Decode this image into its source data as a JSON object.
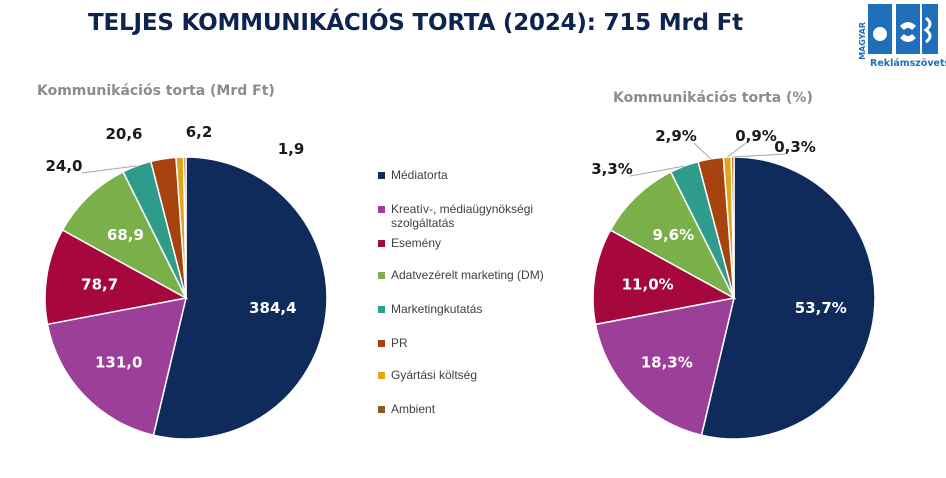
{
  "page": {
    "title": "TELJES KOMMUNIKÁCIÓS TORTA (2024): 715 Mrd Ft",
    "logo_text_top": "MAGYAR",
    "logo_text_bottom": "Reklámszövetség"
  },
  "colors": {
    "title": "#0d2350",
    "subtitle": "#8c8c8c",
    "slices": [
      "#0e2b5c",
      "#9c3f99",
      "#a6073f",
      "#7ab04a",
      "#2e9b8b",
      "#a6430f",
      "#e0a41d",
      "#8a5a1e"
    ],
    "logo": "#1e6fb8"
  },
  "legend": {
    "items": [
      "Médiatorta",
      "Kreatív-, médiaügynökségi szolgáltatás",
      "Esemény",
      "Adatvezérelt marketing (DM)",
      "Marketingkutatás",
      "PR",
      "Gyártási költség",
      "Ambient"
    ]
  },
  "chart_data": [
    {
      "type": "pie",
      "title": "Kommunikációs torta (Mrd Ft)",
      "categories": [
        "Médiatorta",
        "Kreatív-, médiaügynökségi szolgáltatás",
        "Esemény",
        "Adatvezérelt marketing (DM)",
        "Marketingkutatás",
        "PR",
        "Gyártási költség",
        "Ambient"
      ],
      "values": [
        384.4,
        131.0,
        78.7,
        68.9,
        24.0,
        20.6,
        6.2,
        1.9
      ],
      "labels": [
        "384,4",
        "131,0",
        "78,7",
        "68,9",
        "24,0",
        "20,6",
        "6,2",
        "1,9"
      ],
      "start": "12 o'clock",
      "direction": "clockwise"
    },
    {
      "type": "pie",
      "title": "Kommunikációs torta  (%)",
      "categories": [
        "Médiatorta",
        "Kreatív-, médiaügynökségi szolgáltatás",
        "Esemény",
        "Adatvezérelt marketing (DM)",
        "Marketingkutatás",
        "PR",
        "Gyártási költség",
        "Ambient"
      ],
      "values": [
        53.7,
        18.3,
        11.0,
        9.6,
        3.3,
        2.9,
        0.9,
        0.3
      ],
      "labels": [
        "53,7%",
        "18,3%",
        "11,0%",
        "9,6%",
        "3,3%",
        "2,9%",
        "0,9%",
        "0,3%"
      ],
      "start": "12 o'clock",
      "direction": "clockwise"
    }
  ]
}
